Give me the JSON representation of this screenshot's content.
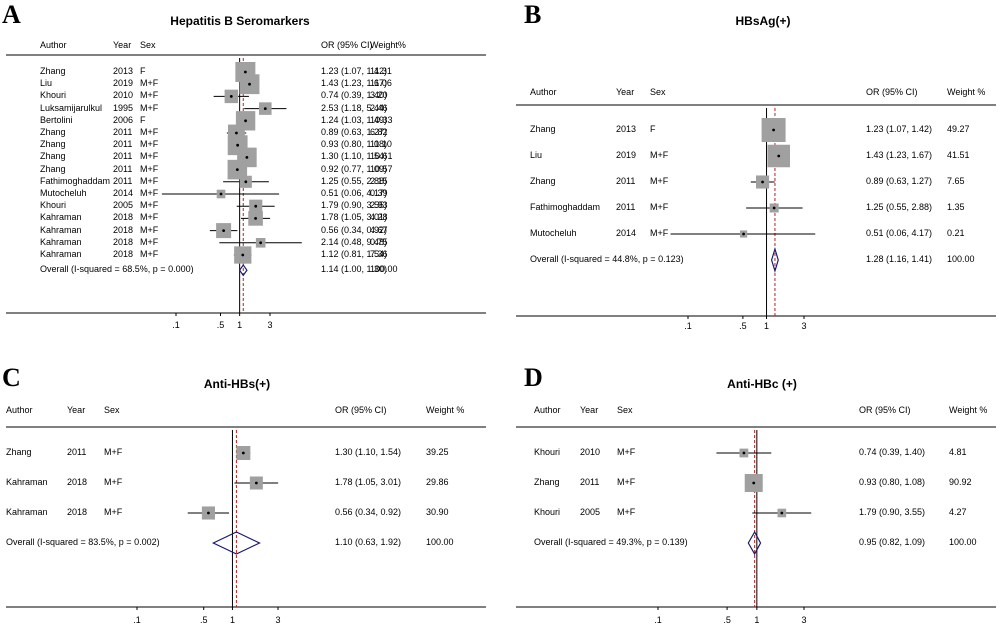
{
  "chart_data": [
    {
      "type": "forest",
      "panel_label": "A",
      "title": "Hepatitis B Seromarkers",
      "headers": {
        "author": "Author",
        "year": "Year",
        "sex": "Sex",
        "or": "OR (95% CI)",
        "weight": "Weight%"
      },
      "x_scale": "log",
      "xticks": [
        ".1",
        ".5",
        "1",
        "3"
      ],
      "xtick_values": [
        0.1,
        0.5,
        1,
        3
      ],
      "reference_line": 1,
      "studies": [
        {
          "author": "Zhang",
          "year": "2013",
          "sex": "F",
          "or": 1.23,
          "lo": 1.07,
          "hi": 1.42,
          "or_text": "1.23 (1.07, 1.42)",
          "weight": 11.31,
          "weight_text": "11.31"
        },
        {
          "author": "Liu",
          "year": "2019",
          "sex": "M+F",
          "or": 1.43,
          "lo": 1.23,
          "hi": 1.67,
          "or_text": "1.43 (1.23, 1.67)",
          "weight": 11.06,
          "weight_text": "11.06"
        },
        {
          "author": "Khouri",
          "year": "2010",
          "sex": "M+F",
          "or": 0.74,
          "lo": 0.39,
          "hi": 1.4,
          "or_text": "0.74 (0.39, 1.40)",
          "weight": 3.2,
          "weight_text": "3.20"
        },
        {
          "author": "Luksamijarulkul",
          "year": "1995",
          "sex": "M+F",
          "or": 2.53,
          "lo": 1.18,
          "hi": 5.44,
          "or_text": "2.53 (1.18, 5.44)",
          "weight": 2.46,
          "weight_text": "2.46"
        },
        {
          "author": "Bertolini",
          "year": "2006",
          "sex": "F",
          "or": 1.24,
          "lo": 1.03,
          "hi": 1.49,
          "or_text": "1.24 (1.03, 1.49)",
          "weight": 10.33,
          "weight_text": "10.33"
        },
        {
          "author": "Zhang",
          "year": "2011",
          "sex": "M+F",
          "or": 0.89,
          "lo": 0.63,
          "hi": 1.27,
          "or_text": "0.89 (0.63, 1.27)",
          "weight": 6.82,
          "weight_text": "6.82"
        },
        {
          "author": "Zhang",
          "year": "2011",
          "sex": "M+F",
          "or": 0.93,
          "lo": 0.8,
          "hi": 1.08,
          "or_text": "0.93 (0.80, 1.08)",
          "weight": 11.1,
          "weight_text": "11.10"
        },
        {
          "author": "Zhang",
          "year": "2011",
          "sex": "M+F",
          "or": 1.3,
          "lo": 1.1,
          "hi": 1.54,
          "or_text": "1.30 (1.10, 1.54)",
          "weight": 10.61,
          "weight_text": "10.61"
        },
        {
          "author": "Zhang",
          "year": "2011",
          "sex": "M+F",
          "or": 0.92,
          "lo": 0.77,
          "hi": 1.09,
          "or_text": "0.92 (0.77, 1.09)",
          "weight": 10.57,
          "weight_text": "10.57"
        },
        {
          "author": "Fathimoghaddam",
          "year": "2011",
          "sex": "M+F",
          "or": 1.25,
          "lo": 0.55,
          "hi": 2.88,
          "or_text": "1.25 (0.55, 2.88)",
          "weight": 2.15,
          "weight_text": "2.15"
        },
        {
          "author": "Mutocheluh",
          "year": "2014",
          "sex": "M+F",
          "or": 0.51,
          "lo": 0.06,
          "hi": 4.17,
          "or_text": "0.51 (0.06, 4.17)",
          "weight": 0.39,
          "weight_text": "0.39"
        },
        {
          "author": "Khouri",
          "year": "2005",
          "sex": "M+F",
          "or": 1.79,
          "lo": 0.9,
          "hi": 3.55,
          "or_text": "1.79 (0.90, 3.55)",
          "weight": 2.93,
          "weight_text": "2.93"
        },
        {
          "author": "Kahraman",
          "year": "2018",
          "sex": "M+F",
          "or": 1.78,
          "lo": 1.05,
          "hi": 3.01,
          "or_text": "1.78 (1.05, 3.01)",
          "weight": 4.28,
          "weight_text": "4.28"
        },
        {
          "author": "Kahraman",
          "year": "2018",
          "sex": "M+F",
          "or": 0.56,
          "lo": 0.34,
          "hi": 0.92,
          "or_text": "0.56 (0.34, 0.92)",
          "weight": 4.67,
          "weight_text": "4.67"
        },
        {
          "author": "Kahraman",
          "year": "2018",
          "sex": "M+F",
          "or": 2.14,
          "lo": 0.48,
          "hi": 9.48,
          "or_text": "2.14 (0.48, 9.48)",
          "weight": 0.75,
          "weight_text": "0.75"
        },
        {
          "author": "Kahraman",
          "year": "2018",
          "sex": "M+F",
          "or": 1.12,
          "lo": 0.81,
          "hi": 1.54,
          "or_text": "1.12 (0.81, 1.54)",
          "weight": 7.36,
          "weight_text": "7.36"
        }
      ],
      "overall": {
        "label": "Overall  (I-squared = 68.5%, p = 0.000)",
        "or": 1.14,
        "lo": 1.0,
        "hi": 1.3,
        "or_text": "1.14 (1.00, 1.30)",
        "weight_text": "100.00"
      }
    },
    {
      "type": "forest",
      "panel_label": "B",
      "title": "HBsAg(+)",
      "headers": {
        "author": "Author",
        "year": "Year",
        "sex": "Sex",
        "or": "OR (95% CI)",
        "weight": "Weight %"
      },
      "x_scale": "log",
      "xticks": [
        ".1",
        ".5",
        "1",
        "3"
      ],
      "xtick_values": [
        0.1,
        0.5,
        1,
        3
      ],
      "reference_line": 1,
      "studies": [
        {
          "author": "Zhang",
          "year": "2013",
          "sex": "F",
          "or": 1.23,
          "lo": 1.07,
          "hi": 1.42,
          "or_text": "1.23 (1.07, 1.42)",
          "weight": 49.27,
          "weight_text": "49.27"
        },
        {
          "author": "Liu",
          "year": "2019",
          "sex": "M+F",
          "or": 1.43,
          "lo": 1.23,
          "hi": 1.67,
          "or_text": "1.43 (1.23, 1.67)",
          "weight": 41.51,
          "weight_text": "41.51"
        },
        {
          "author": "Zhang",
          "year": "2011",
          "sex": "M+F",
          "or": 0.89,
          "lo": 0.63,
          "hi": 1.27,
          "or_text": "0.89 (0.63, 1.27)",
          "weight": 7.65,
          "weight_text": "7.65"
        },
        {
          "author": "Fathimoghaddam",
          "year": "2011",
          "sex": "M+F",
          "or": 1.25,
          "lo": 0.55,
          "hi": 2.88,
          "or_text": "1.25 (0.55, 2.88)",
          "weight": 1.35,
          "weight_text": "1.35"
        },
        {
          "author": "Mutocheluh",
          "year": "2014",
          "sex": "M+F",
          "or": 0.51,
          "lo": 0.06,
          "hi": 4.17,
          "or_text": "0.51 (0.06, 4.17)",
          "weight": 0.21,
          "weight_text": "0.21"
        }
      ],
      "overall": {
        "label": "Overall  (I-squared = 44.8%, p = 0.123)",
        "or": 1.28,
        "lo": 1.16,
        "hi": 1.41,
        "or_text": "1.28 (1.16, 1.41)",
        "weight_text": "100.00"
      }
    },
    {
      "type": "forest",
      "panel_label": "C",
      "title": "Anti-HBs(+)",
      "headers": {
        "author": "Author",
        "year": "Year",
        "sex": "Sex",
        "or": "OR (95% CI)",
        "weight": "Weight %"
      },
      "x_scale": "log",
      "xticks": [
        ".1",
        ".5",
        "1",
        "3"
      ],
      "xtick_values": [
        0.1,
        0.5,
        1,
        3
      ],
      "reference_line": 1,
      "studies": [
        {
          "author": "Zhang",
          "year": "2011",
          "sex": "M+F",
          "or": 1.3,
          "lo": 1.1,
          "hi": 1.54,
          "or_text": "1.30 (1.10, 1.54)",
          "weight": 39.25,
          "weight_text": "39.25"
        },
        {
          "author": "Kahraman",
          "year": "2018",
          "sex": "M+F",
          "or": 1.78,
          "lo": 1.05,
          "hi": 3.01,
          "or_text": "1.78 (1.05, 3.01)",
          "weight": 29.86,
          "weight_text": "29.86"
        },
        {
          "author": "Kahraman",
          "year": "2018",
          "sex": "M+F",
          "or": 0.56,
          "lo": 0.34,
          "hi": 0.92,
          "or_text": "0.56 (0.34, 0.92)",
          "weight": 30.9,
          "weight_text": "30.90"
        }
      ],
      "overall": {
        "label": "Overall  (I-squared = 83.5%, p = 0.002)",
        "or": 1.1,
        "lo": 0.63,
        "hi": 1.92,
        "or_text": "1.10 (0.63, 1.92)",
        "weight_text": "100.00"
      }
    },
    {
      "type": "forest",
      "panel_label": "D",
      "title": "Anti-HBc (+)",
      "headers": {
        "author": "Author",
        "year": "Year",
        "sex": "Sex",
        "or": "OR (95% CI)",
        "weight": "Weight %"
      },
      "x_scale": "log",
      "xticks": [
        ".1",
        ".5",
        "1",
        "3"
      ],
      "xtick_values": [
        0.1,
        0.5,
        1,
        3
      ],
      "reference_line": 1,
      "studies": [
        {
          "author": "Khouri",
          "year": "2010",
          "sex": "M+F",
          "or": 0.74,
          "lo": 0.39,
          "hi": 1.4,
          "or_text": "0.74 (0.39, 1.40)",
          "weight": 4.81,
          "weight_text": "4.81"
        },
        {
          "author": "Zhang",
          "year": "2011",
          "sex": "M+F",
          "or": 0.93,
          "lo": 0.8,
          "hi": 1.08,
          "or_text": "0.93 (0.80, 1.08)",
          "weight": 90.92,
          "weight_text": "90.92"
        },
        {
          "author": "Khouri",
          "year": "2005",
          "sex": "M+F",
          "or": 1.79,
          "lo": 0.9,
          "hi": 3.55,
          "or_text": "1.79 (0.90, 3.55)",
          "weight": 4.27,
          "weight_text": "4.27"
        }
      ],
      "overall": {
        "label": "Overall  (I-squared = 49.3%, p = 0.139)",
        "or": 0.95,
        "lo": 0.82,
        "hi": 1.09,
        "or_text": "0.95 (0.82, 1.09)",
        "weight_text": "100.00"
      }
    }
  ]
}
